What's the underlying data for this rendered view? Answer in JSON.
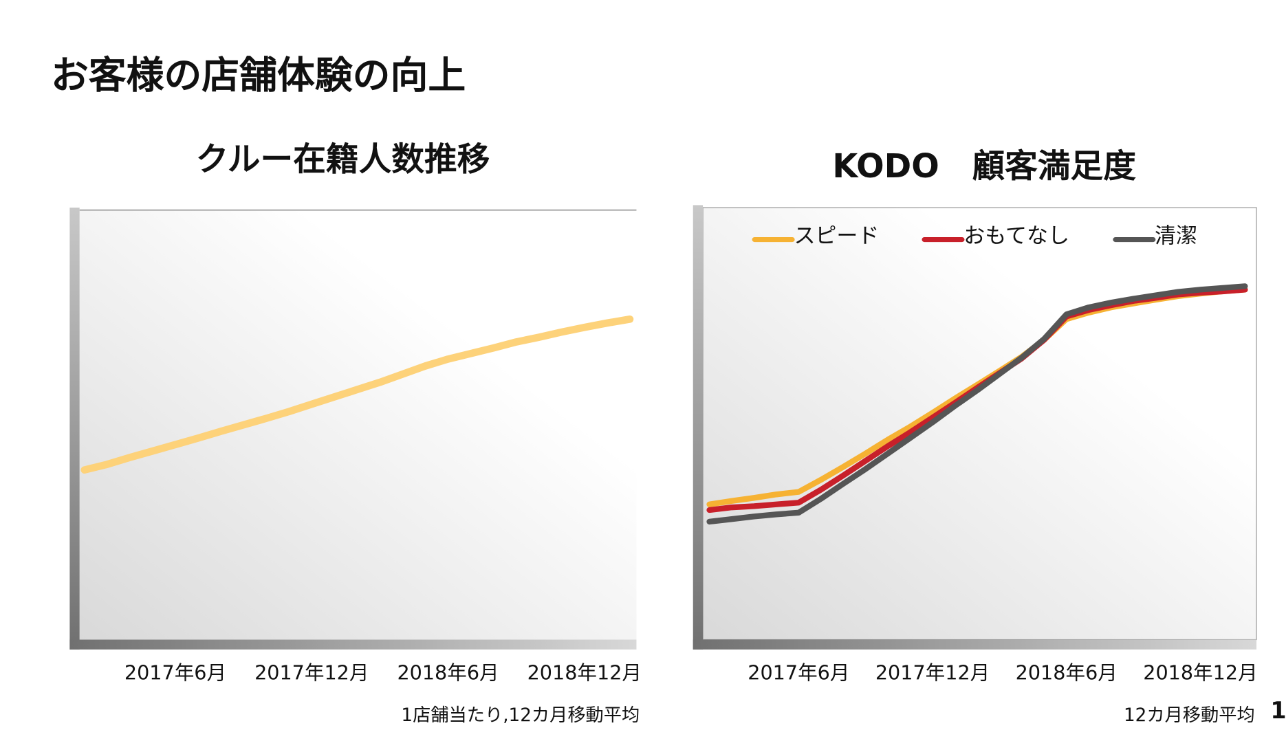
{
  "title": "お客様の店舗体験の向上",
  "page_number": 1,
  "chart_data": [
    {
      "type": "line",
      "title": "クルー在籍人数推移",
      "note": "1店舗当たり,12カ月移動平均",
      "categories": [
        null,
        null,
        null,
        null,
        "2017年6月",
        null,
        null,
        null,
        null,
        null,
        "2017年12月",
        null,
        null,
        null,
        null,
        null,
        "2018年6月",
        null,
        null,
        null,
        null,
        null,
        "2018年12月",
        null,
        null
      ],
      "ylim": [
        0,
        100
      ],
      "series": [
        {
          "name": null,
          "color": "#fdd27a",
          "values": [
            39.5,
            40.8,
            42.4,
            43.9,
            45.4,
            46.9,
            48.5,
            50.0,
            51.5,
            53.1,
            54.8,
            56.5,
            58.2,
            59.9,
            61.8,
            63.7,
            65.3,
            66.6,
            67.9,
            69.3,
            70.4,
            71.6,
            72.7,
            73.7,
            74.6
          ]
        }
      ]
    },
    {
      "type": "line",
      "title": "KODO　顧客満足度",
      "note": "12カ月移動平均",
      "legend": "top",
      "categories": [
        null,
        null,
        null,
        null,
        "2017年6月",
        null,
        null,
        null,
        null,
        null,
        "2017年12月",
        null,
        null,
        null,
        null,
        null,
        "2018年6月",
        null,
        null,
        null,
        null,
        null,
        "2018年12月",
        null,
        null
      ],
      "ylim": [
        0,
        100
      ],
      "series": [
        {
          "name": "スピード",
          "color": "#f6b233",
          "values": [
            31.3,
            32.1,
            32.8,
            33.6,
            34.2,
            37.0,
            40.0,
            43.1,
            46.3,
            49.3,
            52.5,
            55.8,
            59.0,
            62.2,
            65.5,
            69.4,
            74.2,
            75.7,
            76.9,
            77.8,
            78.7,
            79.5,
            80.1,
            80.6,
            81.0
          ]
        },
        {
          "name": "おもてなし",
          "color": "#c8202a",
          "values": [
            30.0,
            30.6,
            30.9,
            31.3,
            31.7,
            34.7,
            38.0,
            41.4,
            44.8,
            48.0,
            51.4,
            54.8,
            58.3,
            61.7,
            65.1,
            69.4,
            74.8,
            76.3,
            77.4,
            78.4,
            79.1,
            79.9,
            80.3,
            80.6,
            81.0
          ]
        },
        {
          "name": "清潔",
          "color": "#555555",
          "values": [
            27.3,
            27.9,
            28.5,
            29.0,
            29.4,
            32.6,
            36.1,
            39.5,
            43.1,
            46.7,
            50.3,
            54.1,
            57.7,
            61.5,
            65.3,
            69.6,
            75.3,
            76.9,
            78.0,
            78.9,
            79.7,
            80.5,
            81.0,
            81.4,
            81.8
          ]
        }
      ]
    }
  ]
}
